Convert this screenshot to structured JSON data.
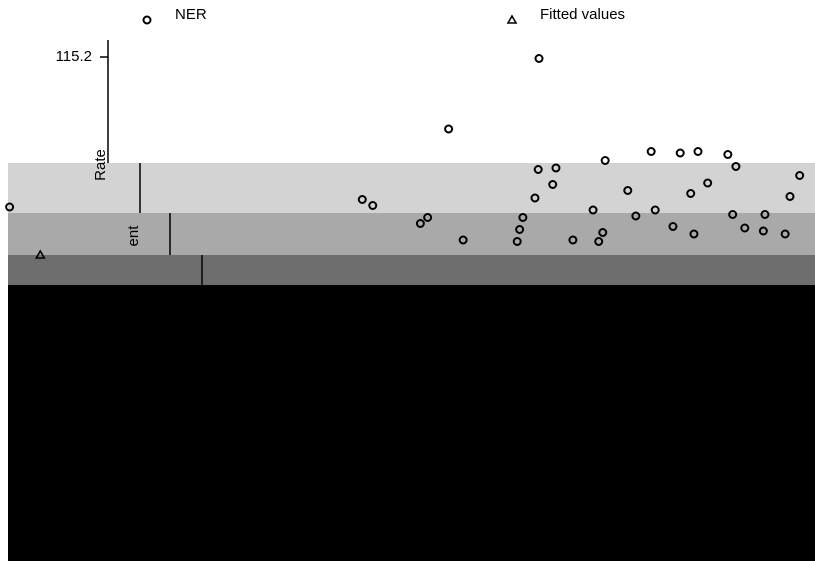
{
  "chart_data": {
    "type": "scatter",
    "series": [
      {
        "name": "NER",
        "marker": "circle",
        "color": "#000000",
        "x": [
          65.8,
          54.6,
          74.0,
          79.7,
          83.3,
          85.5,
          89.2,
          90.2,
          98.1,
          86.7,
          84.6,
          76.8,
          96.9,
          67.5,
          65.7,
          67.9,
          65.3,
          63.8,
          63.4,
          43.9,
          45.2,
          52.0,
          51.1,
          56.4,
          63.1,
          70.0,
          73.2,
          73.7,
          77.8,
          80.2,
          82.4,
          85.0,
          89.8,
          91.3,
          93.8,
          93.6,
          96.3,
          0.2,
          72.5
        ],
        "values": [
          115.1,
          110.4,
          108.3,
          108.9,
          108.8,
          108.9,
          108.7,
          107.9,
          107.3,
          106.8,
          106.1,
          106.3,
          105.9,
          106.7,
          107.7,
          107.8,
          105.8,
          104.5,
          103.7,
          105.7,
          105.3,
          104.5,
          104.1,
          103.0,
          102.9,
          103.0,
          102.9,
          103.5,
          104.6,
          105.0,
          103.9,
          103.4,
          104.7,
          103.8,
          104.7,
          103.6,
          103.4,
          105.2,
          105.0
        ]
      },
      {
        "name": "Fitted values",
        "marker": "triangle",
        "color": "#000000",
        "x": [
          4.0
        ],
        "values": [
          102.0
        ]
      }
    ],
    "y_labels": [
      "Rate",
      "ent"
    ],
    "xlim": [
      0,
      100
    ],
    "ylim": [
      100,
      116
    ],
    "yticks": [
      115.2
    ]
  }
}
